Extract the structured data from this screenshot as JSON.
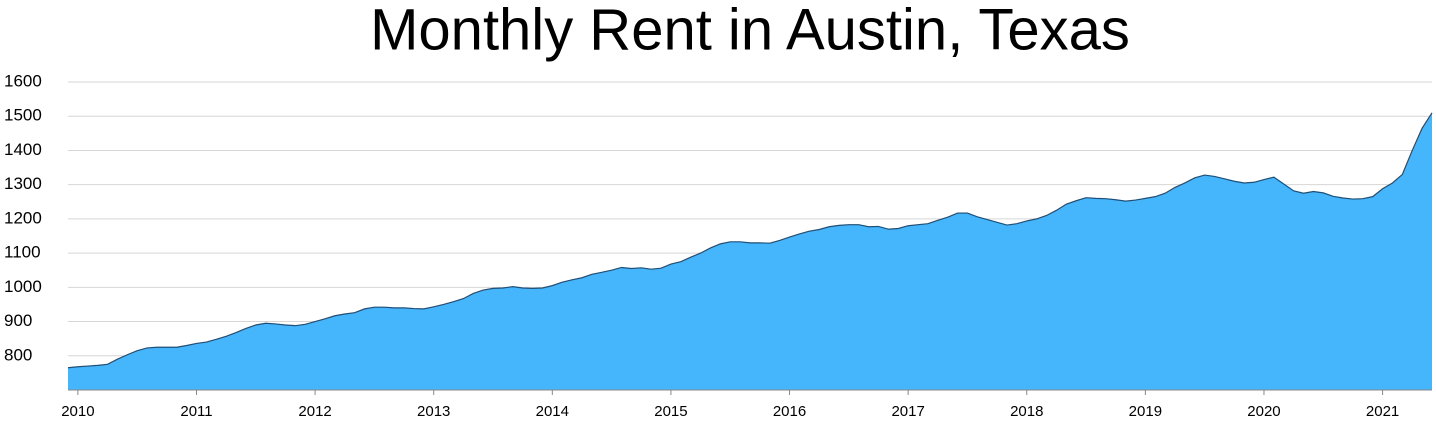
{
  "chart_data": {
    "type": "area",
    "title": "Monthly Rent in Austin, Texas",
    "categories": [
      null,
      "2010",
      null,
      null,
      null,
      null,
      null,
      null,
      null,
      null,
      null,
      null,
      null,
      "2011",
      null,
      null,
      null,
      null,
      null,
      null,
      null,
      null,
      null,
      null,
      null,
      "2012",
      null,
      null,
      null,
      null,
      null,
      null,
      null,
      null,
      null,
      null,
      null,
      "2013",
      null,
      null,
      null,
      null,
      null,
      null,
      null,
      null,
      null,
      null,
      null,
      "2014",
      null,
      null,
      null,
      null,
      null,
      null,
      null,
      null,
      null,
      null,
      null,
      "2015",
      null,
      null,
      null,
      null,
      null,
      null,
      null,
      null,
      null,
      null,
      null,
      "2016",
      null,
      null,
      null,
      null,
      null,
      null,
      null,
      null,
      null,
      null,
      null,
      "2017",
      null,
      null,
      null,
      null,
      null,
      null,
      null,
      null,
      null,
      null,
      null,
      "2018",
      null,
      null,
      null,
      null,
      null,
      null,
      null,
      null,
      null,
      null,
      null,
      "2019",
      null,
      null,
      null,
      null,
      null,
      null,
      null,
      null,
      null,
      null,
      null,
      "2020",
      null,
      null,
      null,
      null,
      null,
      null,
      null,
      null,
      null,
      null,
      null,
      "2021",
      null,
      null,
      null,
      null,
      null
    ],
    "values": [
      765,
      768,
      770,
      772,
      775,
      790,
      803,
      815,
      823,
      825,
      825,
      825,
      830,
      836,
      840,
      848,
      857,
      868,
      880,
      890,
      895,
      893,
      890,
      888,
      892,
      900,
      908,
      917,
      922,
      926,
      937,
      942,
      942,
      940,
      940,
      938,
      937,
      943,
      950,
      958,
      967,
      982,
      992,
      997,
      998,
      1002,
      998,
      997,
      998,
      1005,
      1015,
      1022,
      1028,
      1038,
      1044,
      1050,
      1058,
      1055,
      1057,
      1053,
      1056,
      1068,
      1075,
      1088,
      1100,
      1115,
      1127,
      1133,
      1133,
      1130,
      1130,
      1129,
      1137,
      1147,
      1156,
      1164,
      1169,
      1177,
      1181,
      1183,
      1183,
      1177,
      1178,
      1170,
      1172,
      1180,
      1183,
      1186,
      1196,
      1205,
      1217,
      1217,
      1206,
      1198,
      1190,
      1182,
      1186,
      1194,
      1200,
      1210,
      1225,
      1243,
      1253,
      1262,
      1260,
      1259,
      1256,
      1252,
      1255,
      1260,
      1265,
      1275,
      1292,
      1305,
      1320,
      1328,
      1324,
      1317,
      1310,
      1305,
      1307,
      1315,
      1322,
      1302,
      1282,
      1275,
      1280,
      1276,
      1266,
      1261,
      1258,
      1259,
      1265,
      1288,
      1305,
      1330,
      1400,
      1465,
      1510
    ],
    "color": "#45b5fc",
    "line_color": "#1f4f77",
    "ylim": [
      700,
      1600
    ],
    "yticks": [
      800,
      900,
      1000,
      1100,
      1200,
      1300,
      1400,
      1500,
      1600
    ],
    "grid": true
  }
}
